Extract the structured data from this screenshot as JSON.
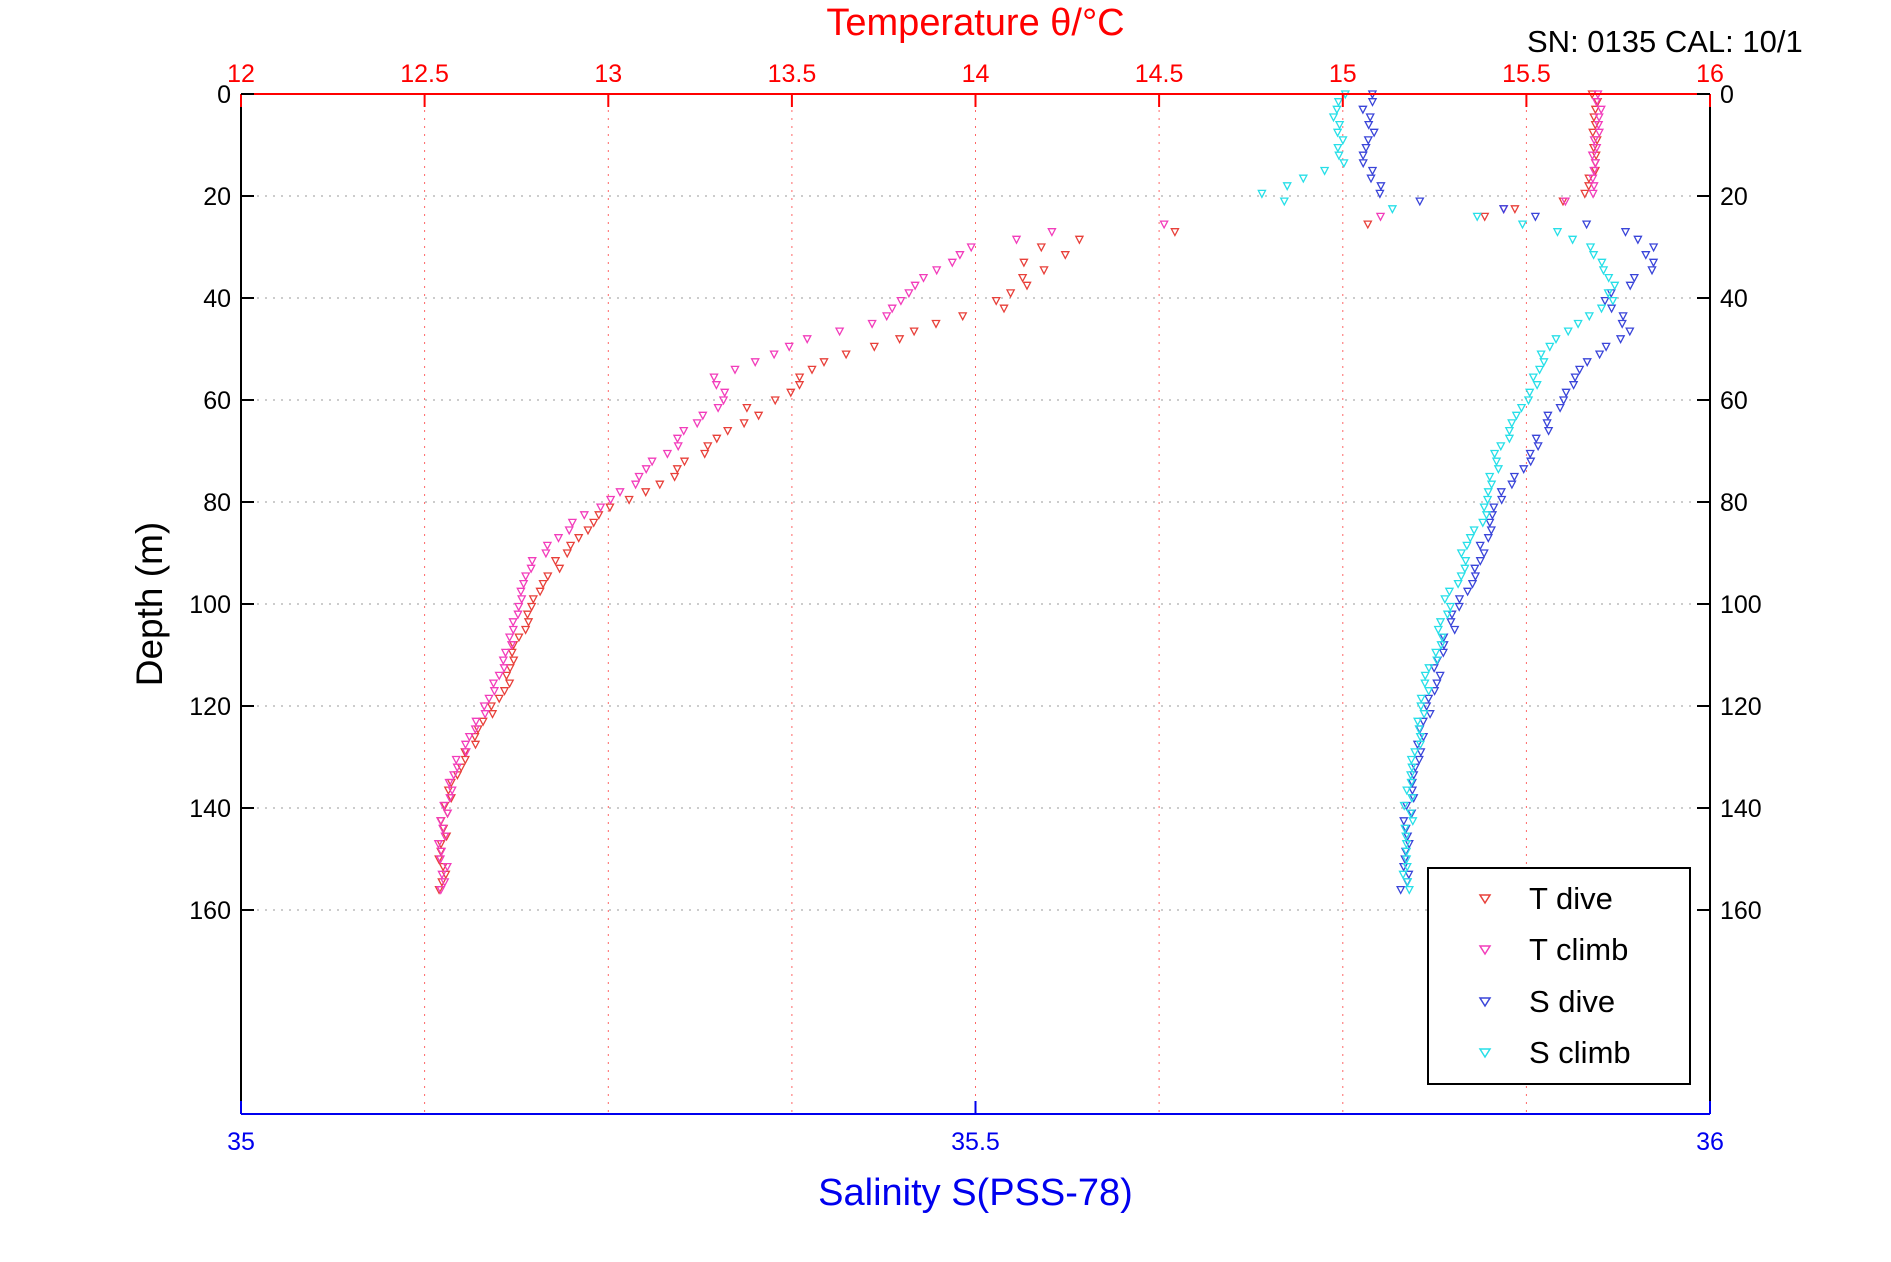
{
  "chart_data": {
    "type": "scatter",
    "title": "Temperature θ/°C",
    "annotation": "SN: 0135  CAL: 10/1",
    "ylabel": "Depth (m)",
    "xlabel_bottom": "Salinity S(PSS-78)",
    "axes": {
      "temperature": {
        "label": "Temperature θ/°C",
        "min": 12,
        "max": 16,
        "ticks": [
          12,
          12.5,
          13,
          13.5,
          14,
          14.5,
          15,
          15.5,
          16
        ],
        "color": "#ff0000",
        "side": "top"
      },
      "salinity": {
        "label": "Salinity S(PSS-78)",
        "min": 35,
        "max": 36,
        "ticks": [
          35,
          35.5,
          36
        ],
        "color": "#0000ee",
        "side": "bottom"
      },
      "depth": {
        "label": "Depth (m)",
        "min": 0,
        "max": 200,
        "ticks": [
          0,
          20,
          40,
          60,
          80,
          100,
          120,
          140,
          160
        ],
        "color": "#000000",
        "side": "left-right"
      }
    },
    "grid": {
      "vertical_color": "#ff6666",
      "horizontal_color": "#9a9a9a",
      "style": "dotted"
    },
    "legend": {
      "position": "inside-bottom-right",
      "entries": [
        {
          "label": "T dive",
          "color": "#e8403a",
          "marker": "v"
        },
        {
          "label": "T climb",
          "color": "#f23dbb",
          "marker": "v"
        },
        {
          "label": "S dive",
          "color": "#3a45d9",
          "marker": "v"
        },
        {
          "label": "S climb",
          "color": "#27dfe8",
          "marker": "v"
        }
      ]
    },
    "sampling": {
      "step_m": 1.5,
      "jitter": {
        "temperature": 0.013,
        "salinity": 0.0035
      }
    },
    "series": [
      {
        "name": "T dive",
        "x_axis": "temperature",
        "color": "#e8403a",
        "points": [
          [
            0,
            15.69
          ],
          [
            4,
            15.68
          ],
          [
            8,
            15.69
          ],
          [
            12,
            15.68
          ],
          [
            16,
            15.68
          ],
          [
            20,
            15.67
          ],
          [
            21,
            15.6
          ],
          [
            23,
            15.42
          ],
          [
            25,
            15.35
          ],
          [
            26,
            14.8
          ],
          [
            27,
            14.55
          ],
          [
            28,
            14.33
          ],
          [
            29,
            14.22
          ],
          [
            30,
            14.17
          ],
          [
            32,
            14.27
          ],
          [
            33,
            14.14
          ],
          [
            34,
            14.2
          ],
          [
            36,
            14.12
          ],
          [
            38,
            14.16
          ],
          [
            40,
            14.04
          ],
          [
            42,
            14.09
          ],
          [
            44,
            13.94
          ],
          [
            46,
            13.85
          ],
          [
            48,
            13.8
          ],
          [
            50,
            13.7
          ],
          [
            52,
            13.6
          ],
          [
            54,
            13.56
          ],
          [
            56,
            13.5
          ],
          [
            58,
            13.52
          ],
          [
            60,
            13.45
          ],
          [
            61,
            13.35
          ],
          [
            62,
            13.42
          ],
          [
            64,
            13.38
          ],
          [
            66,
            13.32
          ],
          [
            68,
            13.29
          ],
          [
            70,
            13.27
          ],
          [
            72,
            13.21
          ],
          [
            74,
            13.18
          ],
          [
            76,
            13.16
          ],
          [
            78,
            13.11
          ],
          [
            80,
            13.04
          ],
          [
            82,
            12.98
          ],
          [
            84,
            12.95
          ],
          [
            86,
            12.96
          ],
          [
            88,
            12.9
          ],
          [
            90,
            12.88
          ],
          [
            92,
            12.86
          ],
          [
            94,
            12.85
          ],
          [
            96,
            12.83
          ],
          [
            98,
            12.81
          ],
          [
            100,
            12.79
          ],
          [
            104,
            12.77
          ],
          [
            108,
            12.75
          ],
          [
            112,
            12.73
          ],
          [
            116,
            12.72
          ],
          [
            120,
            12.69
          ],
          [
            124,
            12.66
          ],
          [
            128,
            12.63
          ],
          [
            132,
            12.6
          ],
          [
            136,
            12.58
          ],
          [
            140,
            12.56
          ],
          [
            145,
            12.55
          ],
          [
            150,
            12.55
          ],
          [
            157,
            12.54
          ]
        ]
      },
      {
        "name": "T climb",
        "x_axis": "temperature",
        "color": "#f23dbb",
        "points": [
          [
            0,
            15.7
          ],
          [
            4,
            15.69
          ],
          [
            8,
            15.7
          ],
          [
            12,
            15.69
          ],
          [
            16,
            15.69
          ],
          [
            20,
            15.68
          ],
          [
            22,
            15.55
          ],
          [
            24,
            15.1
          ],
          [
            25,
            14.65
          ],
          [
            26,
            14.38
          ],
          [
            27,
            14.22
          ],
          [
            28,
            14.13
          ],
          [
            29,
            14.07
          ],
          [
            30,
            13.99
          ],
          [
            32,
            13.95
          ],
          [
            34,
            13.9
          ],
          [
            36,
            13.87
          ],
          [
            38,
            13.84
          ],
          [
            40,
            13.81
          ],
          [
            42,
            13.77
          ],
          [
            44,
            13.74
          ],
          [
            46,
            13.68
          ],
          [
            47,
            13.6
          ],
          [
            48,
            13.53
          ],
          [
            50,
            13.47
          ],
          [
            52,
            13.41
          ],
          [
            54,
            13.34
          ],
          [
            56,
            13.27
          ],
          [
            58,
            13.3
          ],
          [
            60,
            13.32
          ],
          [
            62,
            13.29
          ],
          [
            64,
            13.25
          ],
          [
            66,
            13.21
          ],
          [
            68,
            13.19
          ],
          [
            70,
            13.17
          ],
          [
            72,
            13.13
          ],
          [
            74,
            13.09
          ],
          [
            76,
            13.07
          ],
          [
            78,
            13.04
          ],
          [
            80,
            13.01
          ],
          [
            82,
            12.96
          ],
          [
            84,
            12.91
          ],
          [
            86,
            12.89
          ],
          [
            88,
            12.84
          ],
          [
            90,
            12.82
          ],
          [
            92,
            12.8
          ],
          [
            94,
            12.79
          ],
          [
            96,
            12.78
          ],
          [
            98,
            12.77
          ],
          [
            100,
            12.77
          ],
          [
            104,
            12.75
          ],
          [
            108,
            12.73
          ],
          [
            112,
            12.71
          ],
          [
            116,
            12.69
          ],
          [
            120,
            12.67
          ],
          [
            124,
            12.64
          ],
          [
            128,
            12.61
          ],
          [
            132,
            12.59
          ],
          [
            136,
            12.57
          ],
          [
            140,
            12.56
          ],
          [
            145,
            12.55
          ],
          [
            150,
            12.55
          ],
          [
            157,
            12.55
          ]
        ]
      },
      {
        "name": "S dive",
        "x_axis": "salinity",
        "color": "#3a45d9",
        "points": [
          [
            0,
            35.77
          ],
          [
            4,
            35.765
          ],
          [
            8,
            35.77
          ],
          [
            12,
            35.765
          ],
          [
            16,
            35.77
          ],
          [
            20,
            35.78
          ],
          [
            21,
            35.8
          ],
          [
            22,
            35.85
          ],
          [
            23,
            35.87
          ],
          [
            24,
            35.88
          ],
          [
            25,
            35.9
          ],
          [
            26,
            35.93
          ],
          [
            28,
            35.95
          ],
          [
            30,
            35.965
          ],
          [
            32,
            35.955
          ],
          [
            34,
            35.965
          ],
          [
            36,
            35.95
          ],
          [
            38,
            35.94
          ],
          [
            40,
            35.93
          ],
          [
            42,
            35.935
          ],
          [
            44,
            35.94
          ],
          [
            46,
            35.944
          ],
          [
            48,
            35.938
          ],
          [
            50,
            35.93
          ],
          [
            52,
            35.92
          ],
          [
            54,
            35.914
          ],
          [
            56,
            35.908
          ],
          [
            58,
            35.902
          ],
          [
            60,
            35.898
          ],
          [
            62,
            35.894
          ],
          [
            64,
            35.89
          ],
          [
            66,
            35.887
          ],
          [
            68,
            35.884
          ],
          [
            70,
            35.88
          ],
          [
            72,
            35.876
          ],
          [
            74,
            35.87
          ],
          [
            76,
            35.865
          ],
          [
            78,
            35.86
          ],
          [
            80,
            35.856
          ],
          [
            82,
            35.853
          ],
          [
            84,
            35.85
          ],
          [
            86,
            35.848
          ],
          [
            88,
            35.845
          ],
          [
            90,
            35.843
          ],
          [
            92,
            35.84
          ],
          [
            94,
            35.838
          ],
          [
            96,
            35.835
          ],
          [
            98,
            35.833
          ],
          [
            100,
            35.83
          ],
          [
            104,
            35.825
          ],
          [
            108,
            35.82
          ],
          [
            112,
            35.816
          ],
          [
            116,
            35.812
          ],
          [
            120,
            35.809
          ],
          [
            124,
            35.806
          ],
          [
            128,
            35.803
          ],
          [
            132,
            35.8
          ],
          [
            136,
            35.798
          ],
          [
            140,
            35.796
          ],
          [
            145,
            35.794
          ],
          [
            150,
            35.793
          ],
          [
            157,
            35.792
          ]
        ]
      },
      {
        "name": "S climb",
        "x_axis": "salinity",
        "color": "#27dfe8",
        "points": [
          [
            0,
            35.75
          ],
          [
            4,
            35.746
          ],
          [
            8,
            35.75
          ],
          [
            12,
            35.747
          ],
          [
            14,
            35.75
          ],
          [
            16,
            35.73
          ],
          [
            18,
            35.71
          ],
          [
            20,
            35.69
          ],
          [
            21,
            35.71
          ],
          [
            22,
            35.76
          ],
          [
            23,
            35.81
          ],
          [
            24,
            35.84
          ],
          [
            25,
            35.86
          ],
          [
            26,
            35.88
          ],
          [
            27,
            35.895
          ],
          [
            28,
            35.905
          ],
          [
            30,
            35.918
          ],
          [
            32,
            35.924
          ],
          [
            34,
            35.929
          ],
          [
            36,
            35.931
          ],
          [
            38,
            35.933
          ],
          [
            40,
            35.934
          ],
          [
            42,
            35.924
          ],
          [
            44,
            35.914
          ],
          [
            46,
            35.904
          ],
          [
            48,
            35.896
          ],
          [
            50,
            35.89
          ],
          [
            52,
            35.887
          ],
          [
            54,
            35.884
          ],
          [
            56,
            35.882
          ],
          [
            58,
            35.879
          ],
          [
            60,
            35.877
          ],
          [
            62,
            35.872
          ],
          [
            64,
            35.867
          ],
          [
            66,
            35.863
          ],
          [
            68,
            35.86
          ],
          [
            70,
            35.857
          ],
          [
            72,
            35.855
          ],
          [
            74,
            35.853
          ],
          [
            76,
            35.852
          ],
          [
            78,
            35.851
          ],
          [
            80,
            35.85
          ],
          [
            82,
            35.846
          ],
          [
            84,
            35.843
          ],
          [
            86,
            35.84
          ],
          [
            88,
            35.837
          ],
          [
            90,
            35.834
          ],
          [
            92,
            35.831
          ],
          [
            94,
            35.829
          ],
          [
            96,
            35.826
          ],
          [
            98,
            35.823
          ],
          [
            100,
            35.821
          ],
          [
            104,
            35.817
          ],
          [
            108,
            35.814
          ],
          [
            112,
            35.811
          ],
          [
            116,
            35.808
          ],
          [
            120,
            35.805
          ],
          [
            124,
            35.802
          ],
          [
            128,
            35.8
          ],
          [
            132,
            35.798
          ],
          [
            136,
            35.796
          ],
          [
            140,
            35.795
          ],
          [
            145,
            35.794
          ],
          [
            150,
            35.793
          ],
          [
            157,
            35.792
          ]
        ]
      }
    ]
  }
}
